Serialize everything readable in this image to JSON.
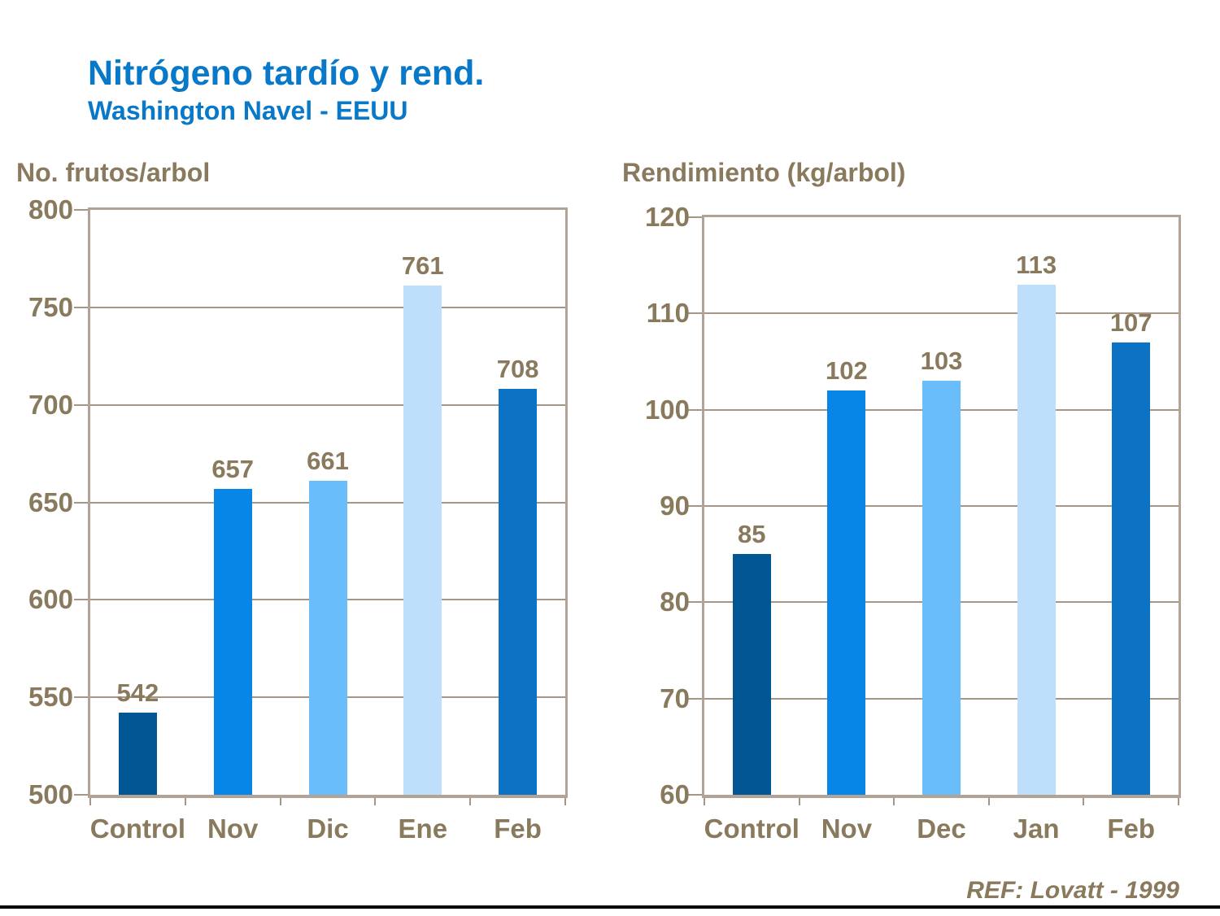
{
  "page": {
    "title": "Nitrógeno tardío y rend.",
    "subtitle": "Washington Navel - EEUU",
    "footer_ref": "REF: Lovatt - 1999"
  },
  "colors": {
    "title_blue": "#0878C8",
    "axis_text_brown": "#897A5D",
    "plot_border": "#B1A496",
    "gridline": "#A69686",
    "bottom_rule": "#000000"
  },
  "chart_data": [
    {
      "type": "bar",
      "title": "No. frutos/arbol",
      "categories": [
        "Control",
        "Nov",
        "Dic",
        "Ene",
        "Feb"
      ],
      "values": [
        542,
        657,
        661,
        761,
        708
      ],
      "value_labels": [
        "542",
        "657",
        "661",
        "761",
        "708"
      ],
      "bar_colors": [
        "#015694",
        "#0886E8",
        "#69BDFA",
        "#BDDFFB",
        "#0B72C4"
      ],
      "ylim": [
        500,
        800
      ],
      "yticks": [
        500,
        550,
        600,
        650,
        700,
        750,
        800
      ],
      "grid": true,
      "legend": "none"
    },
    {
      "type": "bar",
      "title": "Rendimiento (kg/arbol)",
      "categories": [
        "Control",
        "Nov",
        "Dec",
        "Jan",
        "Feb"
      ],
      "values": [
        85,
        102,
        103,
        113,
        107
      ],
      "value_labels": [
        "85",
        "102",
        "103",
        "113",
        "107"
      ],
      "bar_colors": [
        "#015694",
        "#0886E8",
        "#69BDFA",
        "#BDDFFB",
        "#0B72C4"
      ],
      "ylim": [
        60,
        120
      ],
      "yticks": [
        60,
        70,
        80,
        90,
        100,
        110,
        120
      ],
      "grid": true,
      "legend": "none"
    }
  ]
}
